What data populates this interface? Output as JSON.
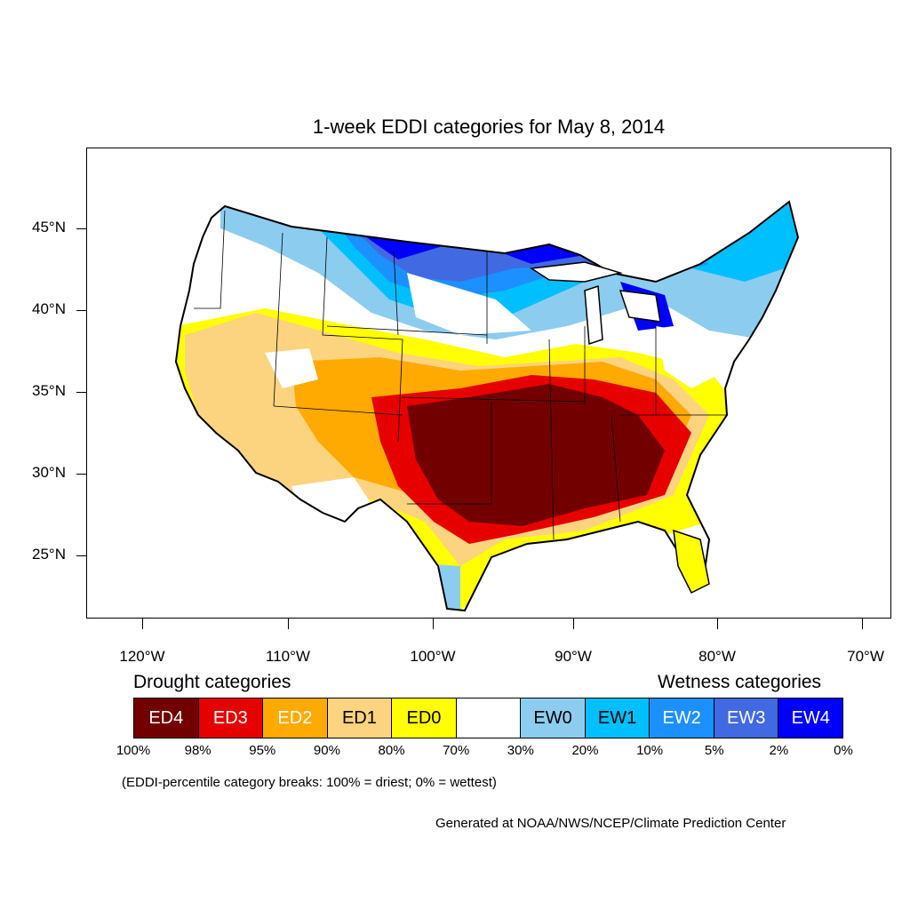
{
  "title": "1-week EDDI categories for May 8, 2014",
  "map": {
    "region": "Contiguous United States",
    "lat_labels": [
      "45°N",
      "40°N",
      "35°N",
      "30°N",
      "25°N"
    ],
    "lon_labels": [
      "120°W",
      "110°W",
      "100°W",
      "90°W",
      "80°W",
      "70°W"
    ],
    "colors": {
      "ED4": "#730000",
      "ED3": "#e60000",
      "ED2": "#ffaa00",
      "ED1": "#fcd37f",
      "ED0": "#ffff00",
      "none": "#ffffff",
      "EW0": "#8ccdef",
      "EW1": "#00bfff",
      "EW2": "#1d90ff",
      "EW3": "#4169e1",
      "EW4": "#0000ff"
    }
  },
  "legend": {
    "drought_heading": "Drought categories",
    "wetness_heading": "Wetness categories",
    "categories": [
      {
        "label": "ED4",
        "color": "#730000",
        "text_color": "#ffffff"
      },
      {
        "label": "ED3",
        "color": "#e60000",
        "text_color": "#ffffff"
      },
      {
        "label": "ED2",
        "color": "#ffaa00",
        "text_color": "#ffffff"
      },
      {
        "label": "ED1",
        "color": "#fcd37f",
        "text_color": "#000000"
      },
      {
        "label": "ED0",
        "color": "#ffff00",
        "text_color": "#000000"
      },
      {
        "label": "",
        "color": "#ffffff",
        "text_color": "#000000"
      },
      {
        "label": "EW0",
        "color": "#8ccdef",
        "text_color": "#000000"
      },
      {
        "label": "EW1",
        "color": "#00bfff",
        "text_color": "#000000"
      },
      {
        "label": "EW2",
        "color": "#1d90ff",
        "text_color": "#ffffff"
      },
      {
        "label": "EW3",
        "color": "#4169e1",
        "text_color": "#ffffff"
      },
      {
        "label": "EW4",
        "color": "#0000ff",
        "text_color": "#ffffff"
      }
    ],
    "breaks": [
      "100%",
      "98%",
      "95%",
      "90%",
      "80%",
      "70%",
      "30%",
      "20%",
      "10%",
      "5%",
      "2%",
      "0%"
    ]
  },
  "note": "(EDDI-percentile category breaks: 100% = driest; 0% = wettest)",
  "credit": "Generated at NOAA/NWS/NCEP/Climate Prediction Center"
}
